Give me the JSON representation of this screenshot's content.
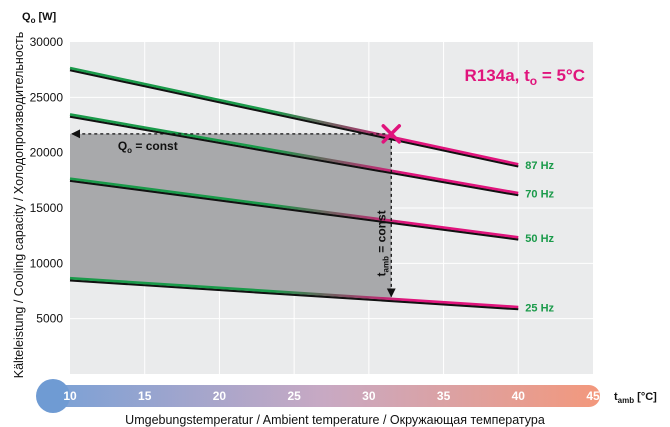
{
  "chart_data": {
    "type": "line",
    "title": "R134a, t",
    "title_sub": "o",
    "title_tail": " = 5°C",
    "ylabel": "Kälteleistung / Cooling capacity / Холодопроизводительность",
    "y_unit_main": "Q",
    "y_unit_sub": "o",
    "y_unit_tail": " [W]",
    "xlabel": "Umgebungstemperatur / Ambient temperature / Окружающая температура",
    "x_unit_main": "t",
    "x_unit_sub": "amb",
    "x_unit_tail": " [°C]",
    "xlim": [
      10,
      45
    ],
    "ylim": [
      0,
      30000
    ],
    "x_ticks": [
      "10",
      "15",
      "20",
      "25",
      "30",
      "35",
      "40",
      "45"
    ],
    "y_ticks": [
      "5000",
      "10000",
      "15000",
      "20000",
      "25000",
      "30000"
    ],
    "grid": true,
    "series": [
      {
        "name": "87 Hz",
        "x": [
          10,
          40
        ],
        "y": [
          27600,
          18900
        ]
      },
      {
        "name": "70 Hz",
        "x": [
          10,
          40
        ],
        "y": [
          23400,
          16300
        ]
      },
      {
        "name": "50 Hz",
        "x": [
          10,
          40
        ],
        "y": [
          17600,
          12300
        ]
      },
      {
        "name": "25 Hz",
        "x": [
          10,
          40
        ],
        "y": [
          8600,
          6000
        ]
      }
    ],
    "operating_point": {
      "x": 31.5,
      "y": 21700
    },
    "annotation_q": {
      "main": "Q",
      "sub": "o",
      "tail": " = const"
    },
    "annotation_t": {
      "main": "t",
      "sub": "amb",
      "tail": " = const"
    },
    "colors": {
      "curve_green": "#1a9a4a",
      "curve_magenta": "#e0147c",
      "label": "#1a9a4a",
      "title": "#e0147c",
      "shade": "#a8a9ab",
      "plot_bg": "#eaebec",
      "grid": "#ffffff",
      "marker": "#e0147c"
    }
  }
}
